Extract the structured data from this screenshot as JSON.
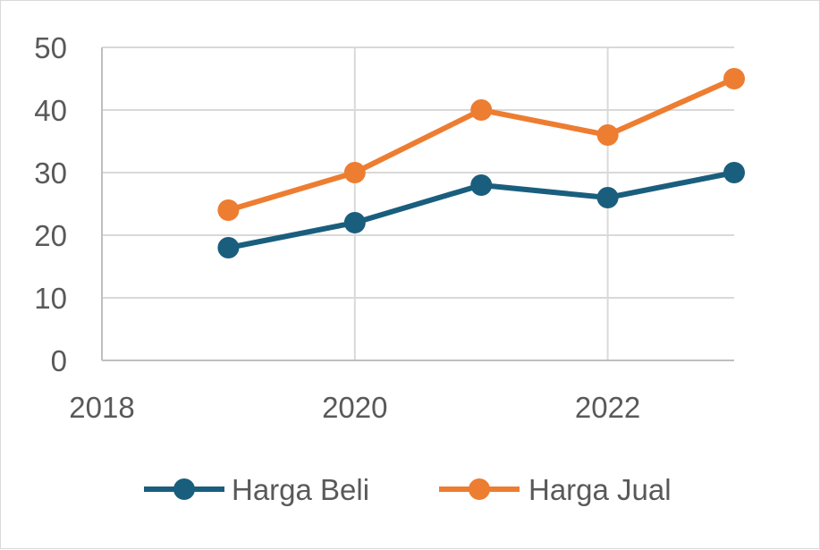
{
  "chart_data": {
    "type": "scatter",
    "title": "",
    "xlabel": "",
    "ylabel": "",
    "xlim": [
      2018,
      2023
    ],
    "ylim": [
      0,
      50
    ],
    "x_ticks": [
      "2018",
      "2020",
      "2022"
    ],
    "y_ticks": [
      "0",
      "10",
      "20",
      "30",
      "40",
      "50"
    ],
    "grid": true,
    "legend_position": "bottom",
    "series": [
      {
        "name": "Harga Beli",
        "color": "#1a5e7e",
        "x": [
          2019,
          2020,
          2021,
          2022,
          2023
        ],
        "y": [
          18,
          22,
          28,
          26,
          30
        ]
      },
      {
        "name": "Harga Jual",
        "color": "#ed7d31",
        "x": [
          2019,
          2020,
          2021,
          2022,
          2023
        ],
        "y": [
          24,
          30,
          40,
          36,
          45
        ]
      }
    ]
  }
}
